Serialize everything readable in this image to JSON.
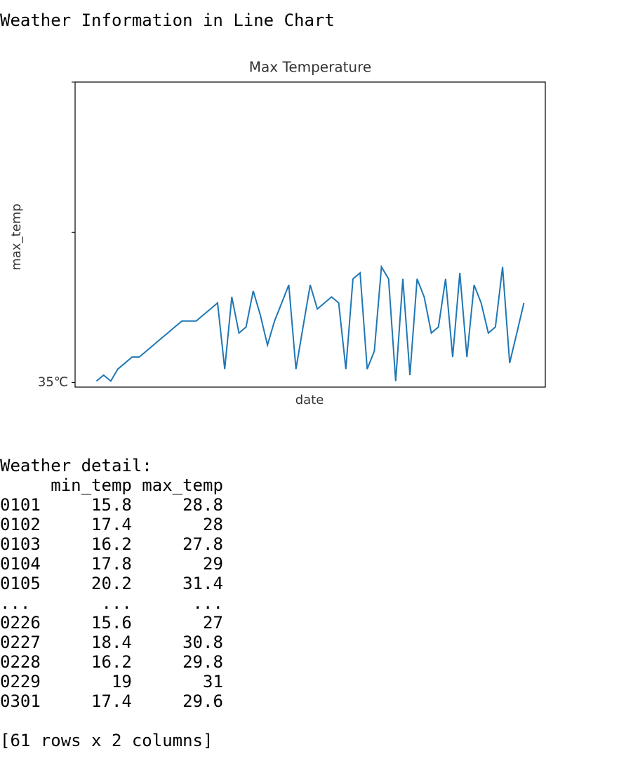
{
  "header": {
    "title": "Weather Information in Line Chart"
  },
  "chart_data": {
    "type": "line",
    "title": "Max Temperature",
    "x_label": "date",
    "y_label": "max_temp",
    "series": [
      {
        "name": "max_temp",
        "color": "#1f77b4",
        "values": [
          0.01,
          0.05,
          0.01,
          0.09,
          0.13,
          0.17,
          0.17,
          0.21,
          0.25,
          0.29,
          0.33,
          0.37,
          0.41,
          0.41,
          0.41,
          0.45,
          0.49,
          0.53,
          0.09,
          0.57,
          0.33,
          0.37,
          0.61,
          0.45,
          0.25,
          0.41,
          0.53,
          0.65,
          0.09,
          0.37,
          0.65,
          0.49,
          0.53,
          0.57,
          0.53,
          0.09,
          0.69,
          0.73,
          0.09,
          0.21,
          0.77,
          0.69,
          0.01,
          0.69,
          0.05,
          0.69,
          0.57,
          0.33,
          0.37,
          0.69,
          0.17,
          0.73,
          0.17,
          0.65,
          0.53,
          0.33,
          0.37,
          0.77,
          0.13,
          0.33,
          0.53
        ]
      }
    ],
    "ylim": [
      -0.03,
      2.0
    ],
    "yticks": [
      {
        "value": 0,
        "label": "35℃"
      },
      {
        "value": 1,
        "label": null
      },
      {
        "value": 2,
        "label": null
      }
    ]
  },
  "table": {
    "title": "Weather detail:",
    "columns": [
      "min_temp",
      "max_temp"
    ],
    "rows": [
      [
        "0101",
        15.8,
        28.8
      ],
      [
        "0102",
        17.4,
        28
      ],
      [
        "0103",
        16.2,
        27.8
      ],
      [
        "0104",
        17.8,
        29
      ],
      [
        "0105",
        20.2,
        31.4
      ],
      [
        "...",
        "...",
        "..."
      ],
      [
        "0226",
        15.6,
        27
      ],
      [
        "0227",
        18.4,
        30.8
      ],
      [
        "0228",
        16.2,
        29.8
      ],
      [
        "0229",
        19,
        31
      ],
      [
        "0301",
        17.4,
        29.6
      ]
    ],
    "footer": "[61 rows x 2 columns]"
  }
}
